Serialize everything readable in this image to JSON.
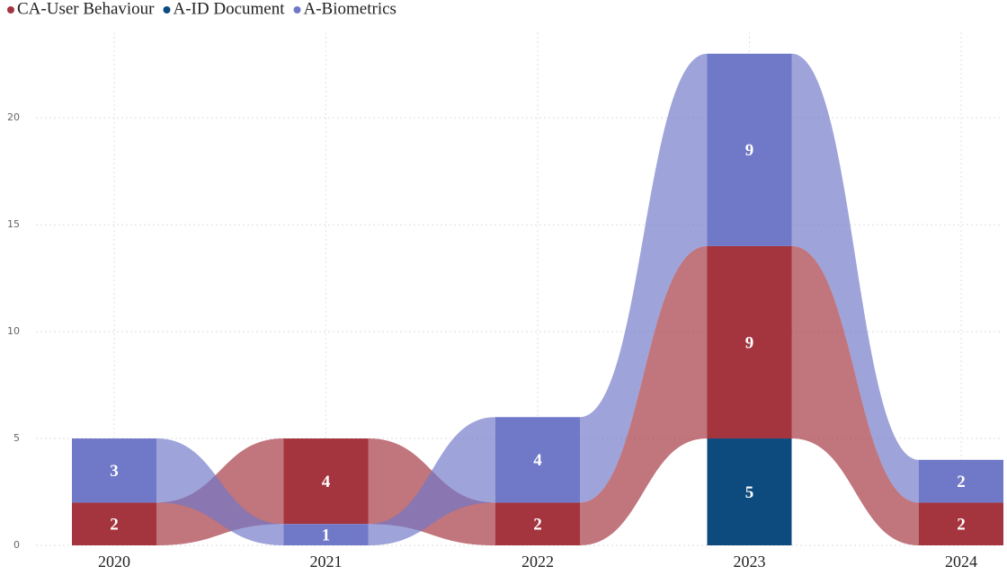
{
  "chart_data": {
    "type": "ribbon",
    "categories": [
      "2020",
      "2021",
      "2022",
      "2023",
      "2024"
    ],
    "series": [
      {
        "name": "CA-User Behaviour",
        "color": "#a4343e",
        "values": [
          2,
          4,
          2,
          9,
          2
        ]
      },
      {
        "name": "A-ID Document",
        "color": "#0d4a7e",
        "values": [
          null,
          null,
          null,
          5,
          null
        ]
      },
      {
        "name": "A-Biometrics",
        "color": "#7078c8",
        "values": [
          3,
          1,
          4,
          9,
          2
        ]
      }
    ],
    "ylim": [
      0,
      24
    ],
    "yticks": [
      0,
      5,
      10,
      15,
      20
    ],
    "grid": true
  }
}
